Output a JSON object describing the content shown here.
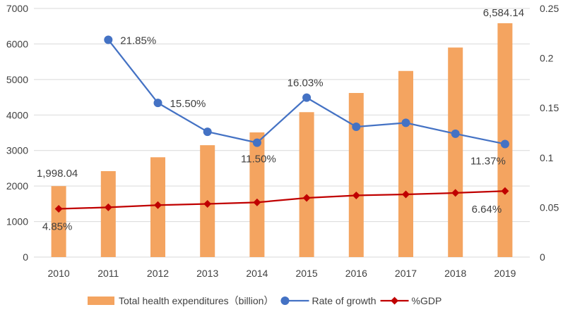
{
  "chart_data": {
    "type": "bar",
    "title": "",
    "categories": [
      "2010",
      "2011",
      "2012",
      "2013",
      "2014",
      "2015",
      "2016",
      "2017",
      "2018",
      "2019"
    ],
    "series": [
      {
        "name": "Total health expenditures（billion）",
        "type": "bar",
        "axis": "left",
        "color": "#f4a460",
        "values": [
          1998.04,
          2420,
          2810,
          3150,
          3510,
          4080,
          4620,
          5240,
          5900,
          6584.14
        ]
      },
      {
        "name": "Rate of growth",
        "type": "line",
        "axis": "right",
        "color": "#4472c4",
        "marker": "circle",
        "values": [
          null,
          0.2185,
          0.155,
          0.126,
          0.115,
          0.1603,
          0.131,
          0.135,
          0.124,
          0.1137
        ]
      },
      {
        "name": "%GDP",
        "type": "line",
        "axis": "right",
        "color": "#c00000",
        "marker": "diamond",
        "values": [
          0.0485,
          0.05,
          0.0522,
          0.0535,
          0.055,
          0.0595,
          0.062,
          0.063,
          0.0645,
          0.0664
        ]
      }
    ],
    "y_left": {
      "min": 0,
      "max": 7000,
      "ticks": [
        "0",
        "1000",
        "2000",
        "3000",
        "4000",
        "5000",
        "6000",
        "7000"
      ]
    },
    "y_right": {
      "min": 0,
      "max": 0.25,
      "ticks": [
        "0",
        "0.05",
        "0.1",
        "0.15",
        "0.2",
        "0.25"
      ]
    },
    "grid": true,
    "legend_position": "bottom",
    "annotations": [
      {
        "series": 0,
        "index": 0,
        "text": "1,998.04"
      },
      {
        "series": 0,
        "index": 9,
        "text": "6,584.14"
      },
      {
        "series": 1,
        "index": 1,
        "text": "21.85%"
      },
      {
        "series": 1,
        "index": 2,
        "text": "15.50%"
      },
      {
        "series": 1,
        "index": 4,
        "text": "11.50%"
      },
      {
        "series": 1,
        "index": 5,
        "text": "16.03%"
      },
      {
        "series": 1,
        "index": 9,
        "text": "11.37%"
      },
      {
        "series": 2,
        "index": 0,
        "text": "4.85%"
      },
      {
        "series": 2,
        "index": 9,
        "text": "6.64%"
      }
    ]
  }
}
